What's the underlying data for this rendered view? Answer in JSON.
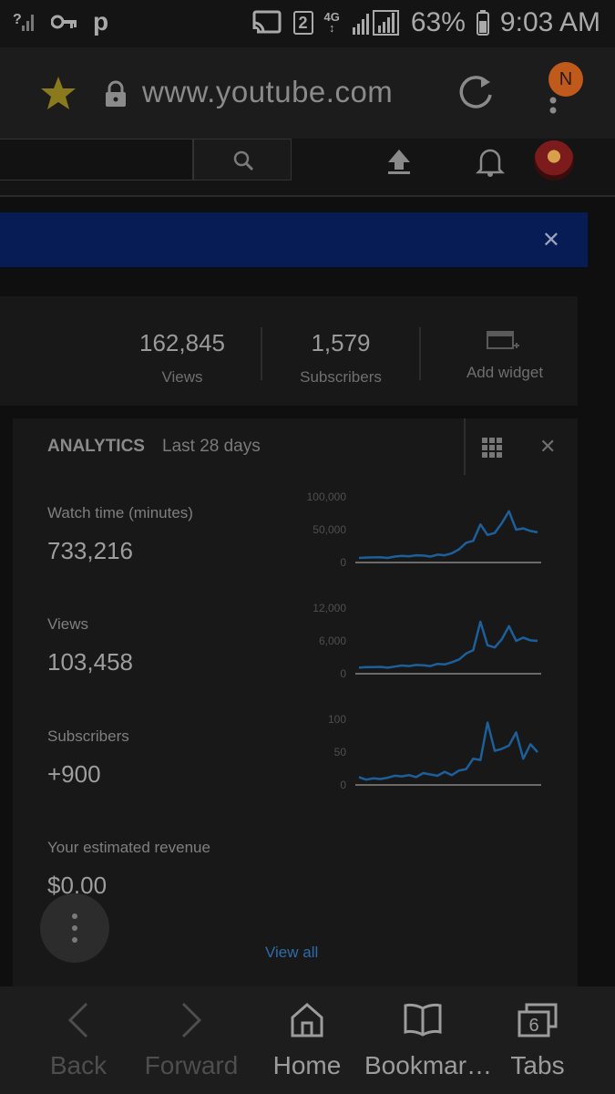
{
  "status_bar": {
    "left_icons": [
      "no-signal-icon",
      "key-icon",
      "p-icon"
    ],
    "sim_slot": "2",
    "network": "4G",
    "battery": "63%",
    "time": "9:03 AM"
  },
  "browser": {
    "url": "www.youtube.com",
    "profile_initial": "N"
  },
  "stats": {
    "views_value": "162,845",
    "views_label": "Views",
    "subscribers_value": "1,579",
    "subscribers_label": "Subscribers",
    "add_widget_label": "Add widget"
  },
  "analytics": {
    "title": "ANALYTICS",
    "range": "Last 28 days",
    "metrics": [
      {
        "label": "Watch time (minutes)",
        "value": "733,216",
        "ticks": [
          "100,000",
          "50,000",
          "0"
        ]
      },
      {
        "label": "Views",
        "value": "103,458",
        "ticks": [
          "12,000",
          "6,000",
          "0"
        ]
      },
      {
        "label": "Subscribers",
        "value": "+900",
        "ticks": [
          "100",
          "50",
          "0"
        ]
      },
      {
        "label": "Your estimated revenue",
        "value": "$0.00"
      }
    ],
    "view_all": "View all"
  },
  "chart_data": [
    {
      "type": "line",
      "ylim": [
        0,
        100000
      ],
      "series": [
        {
          "values": [
            7000,
            7500,
            7800,
            8000,
            7000,
            9000,
            10000,
            9500,
            11000,
            10500,
            9000,
            12000,
            11000,
            14000,
            20000,
            30000,
            33000,
            58000,
            42000,
            45000,
            60000,
            78000,
            50000,
            52000,
            48000,
            46000
          ]
        }
      ]
    },
    {
      "type": "line",
      "ylim": [
        0,
        12000
      ],
      "series": [
        {
          "values": [
            1100,
            1200,
            1200,
            1250,
            1100,
            1300,
            1500,
            1400,
            1600,
            1550,
            1400,
            1800,
            1700,
            2100,
            2600,
            3700,
            4300,
            9500,
            5200,
            4800,
            6300,
            8700,
            6000,
            6600,
            6100,
            6000
          ]
        }
      ]
    },
    {
      "type": "line",
      "ylim": [
        0,
        100
      ],
      "series": [
        {
          "values": [
            12,
            8,
            10,
            9,
            11,
            14,
            13,
            15,
            12,
            18,
            16,
            14,
            20,
            15,
            22,
            24,
            40,
            38,
            95,
            52,
            55,
            60,
            80,
            40,
            62,
            50
          ]
        }
      ]
    }
  ],
  "bottom_nav": {
    "back": "Back",
    "forward": "Forward",
    "home": "Home",
    "bookmarks": "Bookmar…",
    "tabs": "Tabs",
    "tab_count": "6"
  }
}
